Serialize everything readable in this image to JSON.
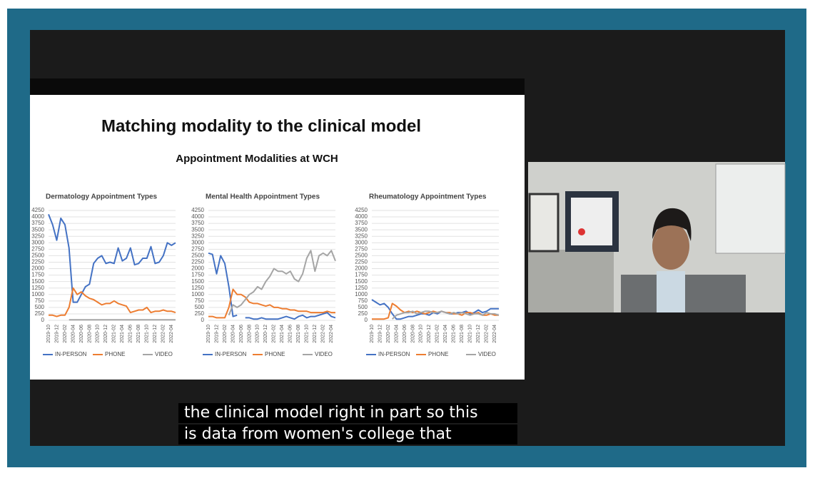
{
  "slide_title": "Matching modality to the clinical model",
  "chart_heading": "Appointment Modalities at WCH",
  "caption": [
    "the clinical model right in part so this",
    "is data from women's college that"
  ],
  "chart_data": [
    {
      "type": "line",
      "title": "Dermatology Appointment Types",
      "categories": [
        "2019-10",
        null,
        "2019-12",
        null,
        "2020-02",
        null,
        "2020-04",
        null,
        "2020-06",
        null,
        "2020-08",
        null,
        "2020-10",
        null,
        "2020-12",
        null,
        "2021-02",
        null,
        "2021-04",
        null,
        "2021-06",
        null,
        "2021-08",
        null,
        "2021-10",
        null,
        "2021-12",
        null,
        "2022-02",
        null,
        "2022-04",
        null
      ],
      "ylim": [
        0,
        4250
      ],
      "yticks": [
        0,
        250,
        500,
        750,
        1000,
        1250,
        1500,
        1750,
        2000,
        2250,
        2500,
        2750,
        3000,
        3250,
        3500,
        3750,
        4000,
        4250
      ],
      "grid": true,
      "legend": "bottom",
      "series": [
        {
          "name": "IN-PERSON",
          "color": "#4472c4",
          "values": [
            4100,
            3700,
            3100,
            3950,
            3700,
            2800,
            700,
            700,
            1000,
            1300,
            1400,
            2200,
            2400,
            2500,
            2200,
            2250,
            2200,
            2800,
            2300,
            2400,
            2800,
            2150,
            2200,
            2400,
            2400,
            2850,
            2200,
            2250,
            2500,
            3000,
            2900,
            3000
          ]
        },
        {
          "name": "PHONE",
          "color": "#ed7d31",
          "values": [
            200,
            200,
            150,
            200,
            200,
            500,
            1250,
            1000,
            1100,
            950,
            850,
            800,
            700,
            600,
            650,
            650,
            750,
            650,
            600,
            550,
            300,
            350,
            400,
            400,
            500,
            300,
            350,
            350,
            400,
            350,
            350,
            300
          ]
        },
        {
          "name": "VIDEO",
          "color": "#a5a5a5",
          "values": [
            null,
            null,
            null,
            null,
            null,
            20,
            20,
            20,
            20,
            20,
            20,
            20,
            20,
            20,
            20,
            20,
            20,
            20,
            20,
            20,
            20,
            20,
            20,
            20,
            20,
            20,
            20,
            20,
            20,
            20,
            20,
            20
          ]
        }
      ]
    },
    {
      "type": "line",
      "title": "Mental Health Appointment Types",
      "categories": [
        "2019-10",
        null,
        "2019-12",
        null,
        "2020-02",
        null,
        "2020-04",
        null,
        "2020-06",
        null,
        "2020-08",
        null,
        "2020-10",
        null,
        "2020-12",
        null,
        "2021-02",
        null,
        "2021-04",
        null,
        "2021-06",
        null,
        "2021-08",
        null,
        "2021-10",
        null,
        "2021-12",
        null,
        "2022-02",
        null,
        "2022-04",
        null
      ],
      "ylim": [
        0,
        4250
      ],
      "yticks": [
        0,
        250,
        500,
        750,
        1000,
        1250,
        1500,
        1750,
        2000,
        2250,
        2500,
        2750,
        3000,
        3250,
        3500,
        3750,
        4000,
        4250
      ],
      "grid": true,
      "legend": "bottom",
      "series": [
        {
          "name": "IN-PERSON",
          "color": "#4472c4",
          "values": [
            2600,
            2550,
            1800,
            2500,
            2200,
            1300,
            150,
            200,
            null,
            100,
            100,
            50,
            50,
            100,
            50,
            50,
            50,
            50,
            100,
            150,
            100,
            50,
            150,
            200,
            100,
            150,
            150,
            200,
            250,
            300,
            150,
            100
          ]
        },
        {
          "name": "PHONE",
          "color": "#ed7d31",
          "values": [
            150,
            150,
            100,
            100,
            100,
            500,
            1200,
            1000,
            1000,
            900,
            700,
            650,
            650,
            600,
            550,
            600,
            500,
            500,
            450,
            450,
            400,
            400,
            350,
            350,
            350,
            300,
            300,
            300,
            300,
            350,
            300,
            300
          ]
        },
        {
          "name": "VIDEO",
          "color": "#a5a5a5",
          "values": [
            null,
            null,
            null,
            null,
            null,
            200,
            600,
            500,
            600,
            800,
            1000,
            1100,
            1300,
            1200,
            1500,
            1700,
            2000,
            1900,
            1900,
            1800,
            1900,
            1600,
            1500,
            1800,
            2400,
            2700,
            1900,
            2500,
            2600,
            2500,
            2700,
            2300
          ]
        }
      ]
    },
    {
      "type": "line",
      "title": "Rheumatology Appointment Types",
      "categories": [
        "2019-10",
        null,
        "2019-12",
        null,
        "2020-02",
        null,
        "2020-04",
        null,
        "2020-06",
        null,
        "2020-08",
        null,
        "2020-10",
        null,
        "2020-12",
        null,
        "2021-02",
        null,
        "2021-04",
        null,
        "2021-06",
        null,
        "2021-08",
        null,
        "2021-10",
        null,
        "2021-12",
        null,
        "2022-02",
        null,
        "2022-04",
        null
      ],
      "ylim": [
        0,
        4250
      ],
      "yticks": [
        0,
        250,
        500,
        750,
        1000,
        1250,
        1500,
        1750,
        2000,
        2250,
        2500,
        2750,
        3000,
        3250,
        3500,
        3750,
        4000,
        4250
      ],
      "grid": true,
      "legend": "bottom",
      "series": [
        {
          "name": "IN-PERSON",
          "color": "#4472c4",
          "values": [
            800,
            700,
            600,
            650,
            500,
            250,
            50,
            50,
            100,
            150,
            150,
            200,
            250,
            250,
            200,
            300,
            250,
            350,
            300,
            250,
            250,
            300,
            300,
            350,
            250,
            300,
            400,
            300,
            350,
            450,
            450,
            450
          ]
        },
        {
          "name": "PHONE",
          "color": "#ed7d31",
          "values": [
            50,
            50,
            50,
            50,
            100,
            650,
            550,
            400,
            300,
            350,
            300,
            350,
            300,
            250,
            300,
            350,
            300,
            350,
            300,
            300,
            250,
            250,
            200,
            300,
            300,
            250,
            300,
            200,
            200,
            250,
            200,
            200
          ]
        },
        {
          "name": "VIDEO",
          "color": "#a5a5a5",
          "values": [
            null,
            null,
            null,
            null,
            null,
            50,
            200,
            250,
            300,
            300,
            350,
            250,
            300,
            350,
            350,
            300,
            300,
            350,
            300,
            250,
            300,
            250,
            300,
            250,
            200,
            250,
            250,
            200,
            300,
            250,
            250,
            200
          ]
        }
      ]
    }
  ]
}
